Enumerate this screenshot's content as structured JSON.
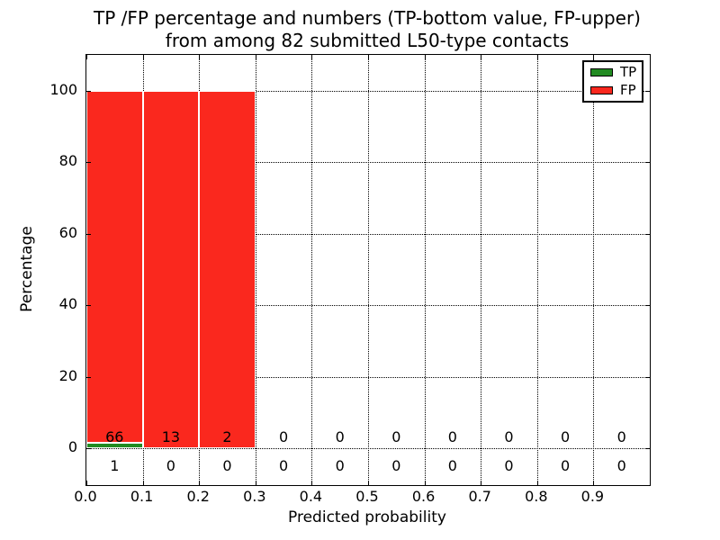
{
  "figure": {
    "title_line1": "TP /FP percentage and numbers (TP-bottom value, FP-upper)",
    "title_line2": "from among 82 submitted L50-type contacts",
    "xlabel": "Predicted probability",
    "ylabel": "Percentage"
  },
  "legend": {
    "position": "upper right",
    "items": [
      {
        "label": "TP",
        "color": "#228b22"
      },
      {
        "label": "FP",
        "color": "#fa281e"
      }
    ]
  },
  "chart_data": {
    "type": "bar",
    "stacked": true,
    "title": "TP /FP percentage and numbers (TP-bottom value, FP-upper) from among 82 submitted L50-type contacts",
    "xlabel": "Predicted probability",
    "ylabel": "Percentage",
    "total_submitted_contacts": 82,
    "xlim": [
      0.0,
      1.0
    ],
    "ylim": [
      -10,
      110
    ],
    "grid": true,
    "grid_style": "dotted",
    "legend_position": "upper right",
    "bin_edges": [
      0.0,
      0.1,
      0.2,
      0.3,
      0.4,
      0.5,
      0.6,
      0.7,
      0.8,
      0.9,
      1.0
    ],
    "xticks": [
      0.0,
      0.1,
      0.2,
      0.3,
      0.4,
      0.5,
      0.6,
      0.7,
      0.8,
      0.9
    ],
    "xtick_labels": [
      "0.0",
      "0.1",
      "0.2",
      "0.3",
      "0.4",
      "0.5",
      "0.6",
      "0.7",
      "0.8",
      "0.9"
    ],
    "yticks": [
      0,
      20,
      40,
      60,
      80,
      100
    ],
    "ytick_labels": [
      "0",
      "20",
      "40",
      "60",
      "80",
      "100"
    ],
    "series": [
      {
        "name": "TP",
        "color": "#228b22",
        "counts": [
          1,
          0,
          0,
          0,
          0,
          0,
          0,
          0,
          0,
          0
        ],
        "percentages": [
          1.49,
          0,
          0,
          0,
          0,
          0,
          0,
          0,
          0,
          0
        ],
        "count_label_y": -5
      },
      {
        "name": "FP",
        "color": "#fa281e",
        "counts": [
          66,
          13,
          2,
          0,
          0,
          0,
          0,
          0,
          0,
          0
        ],
        "percentages": [
          98.51,
          100,
          100,
          0,
          0,
          0,
          0,
          0,
          0,
          0
        ],
        "count_label_y": 3
      }
    ]
  }
}
